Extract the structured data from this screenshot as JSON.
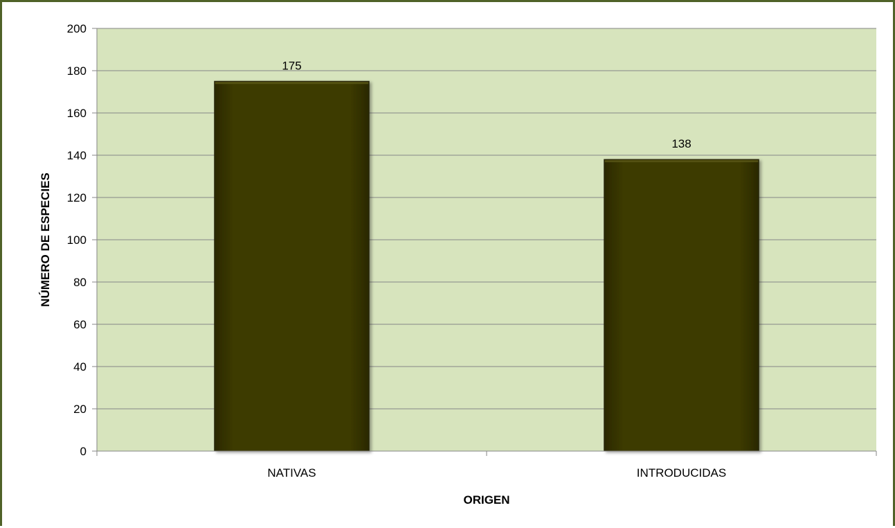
{
  "chart_data": {
    "type": "bar",
    "categories": [
      "NATIVAS",
      "INTRODUCIDAS"
    ],
    "values": [
      175,
      138
    ],
    "data_labels": [
      "175",
      "138"
    ],
    "title": "",
    "xlabel": "ORIGEN",
    "ylabel": "NÚMERO DE ESPECIES",
    "ylim": [
      0,
      200
    ],
    "yticks": [
      0,
      20,
      40,
      60,
      80,
      100,
      120,
      140,
      160,
      180,
      200
    ],
    "grid": true,
    "legend": "none",
    "colors": {
      "plot_background": "#d7e4bd",
      "bar_fill": "#3c3a06",
      "bar_edge": "#26240a",
      "gridline": "#868686",
      "frame": "#4f6228"
    }
  }
}
